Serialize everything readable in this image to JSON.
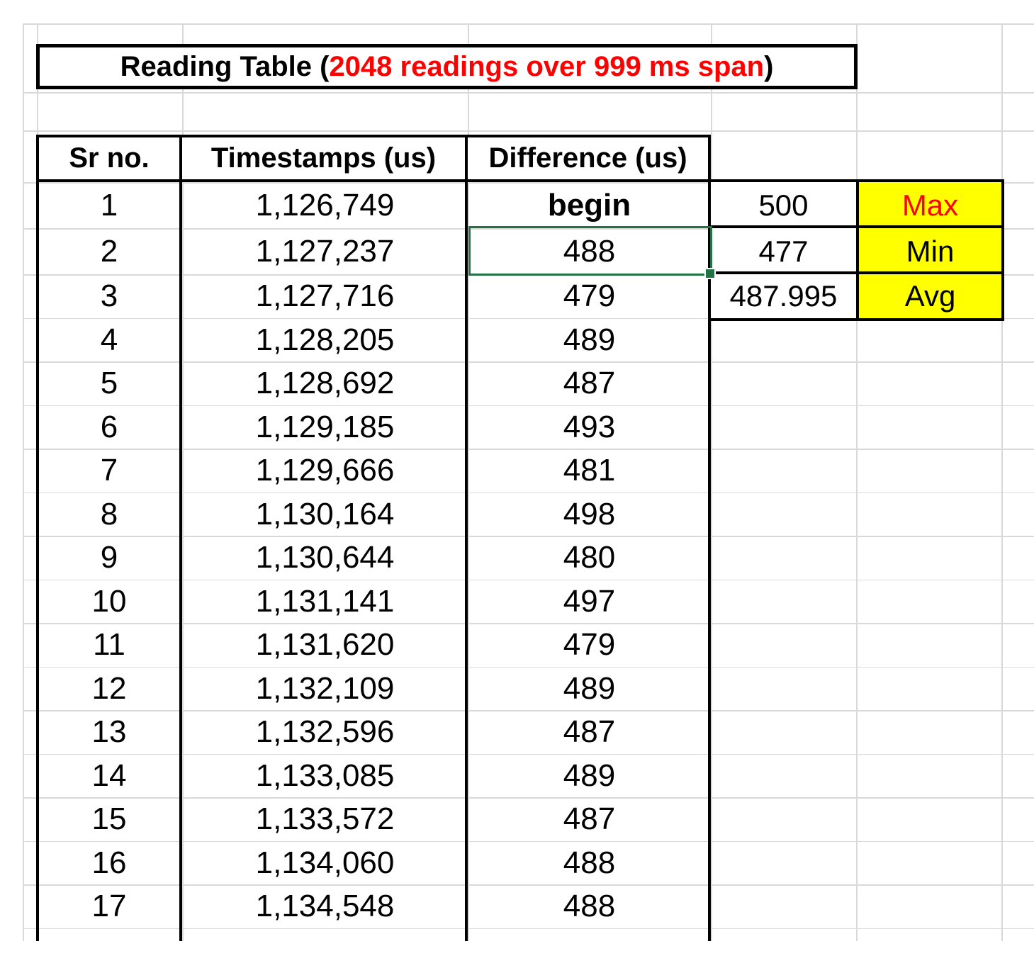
{
  "title": {
    "prefix": "Reading Table (",
    "highlight": "2048 readings over 999 ms span",
    "suffix": ")",
    "highlight_color": "#FF0000"
  },
  "table": {
    "headers": [
      "Sr no.",
      "Timestamps (us)",
      "Difference (us)"
    ],
    "rows": [
      {
        "sr": "1",
        "timestamp": "1,126,749",
        "difference": "begin",
        "emphasis": true
      },
      {
        "sr": "2",
        "timestamp": "1,127,237",
        "difference": "488"
      },
      {
        "sr": "3",
        "timestamp": "1,127,716",
        "difference": "479"
      },
      {
        "sr": "4",
        "timestamp": "1,128,205",
        "difference": "489"
      },
      {
        "sr": "5",
        "timestamp": "1,128,692",
        "difference": "487"
      },
      {
        "sr": "6",
        "timestamp": "1,129,185",
        "difference": "493"
      },
      {
        "sr": "7",
        "timestamp": "1,129,666",
        "difference": "481"
      },
      {
        "sr": "8",
        "timestamp": "1,130,164",
        "difference": "498"
      },
      {
        "sr": "9",
        "timestamp": "1,130,644",
        "difference": "480"
      },
      {
        "sr": "10",
        "timestamp": "1,131,141",
        "difference": "497"
      },
      {
        "sr": "11",
        "timestamp": "1,131,620",
        "difference": "479"
      },
      {
        "sr": "12",
        "timestamp": "1,132,109",
        "difference": "489"
      },
      {
        "sr": "13",
        "timestamp": "1,132,596",
        "difference": "487"
      },
      {
        "sr": "14",
        "timestamp": "1,133,085",
        "difference": "489"
      },
      {
        "sr": "15",
        "timestamp": "1,133,572",
        "difference": "487"
      },
      {
        "sr": "16",
        "timestamp": "1,134,060",
        "difference": "488"
      },
      {
        "sr": "17",
        "timestamp": "1,134,548",
        "difference": "488"
      }
    ]
  },
  "summary": [
    {
      "value": "500",
      "label": "Max",
      "label_color": "#FF0000",
      "fill": "#FFFF00"
    },
    {
      "value": "477",
      "label": "Min",
      "label_color": "#000000",
      "fill": "#FFFF00"
    },
    {
      "value": "487.995",
      "label": "Avg",
      "label_color": "#000000",
      "fill": "#FFFF00"
    }
  ],
  "selection": {
    "row_sr": "2",
    "column": "Difference (us)",
    "value": "488",
    "border_color": "#217346"
  }
}
